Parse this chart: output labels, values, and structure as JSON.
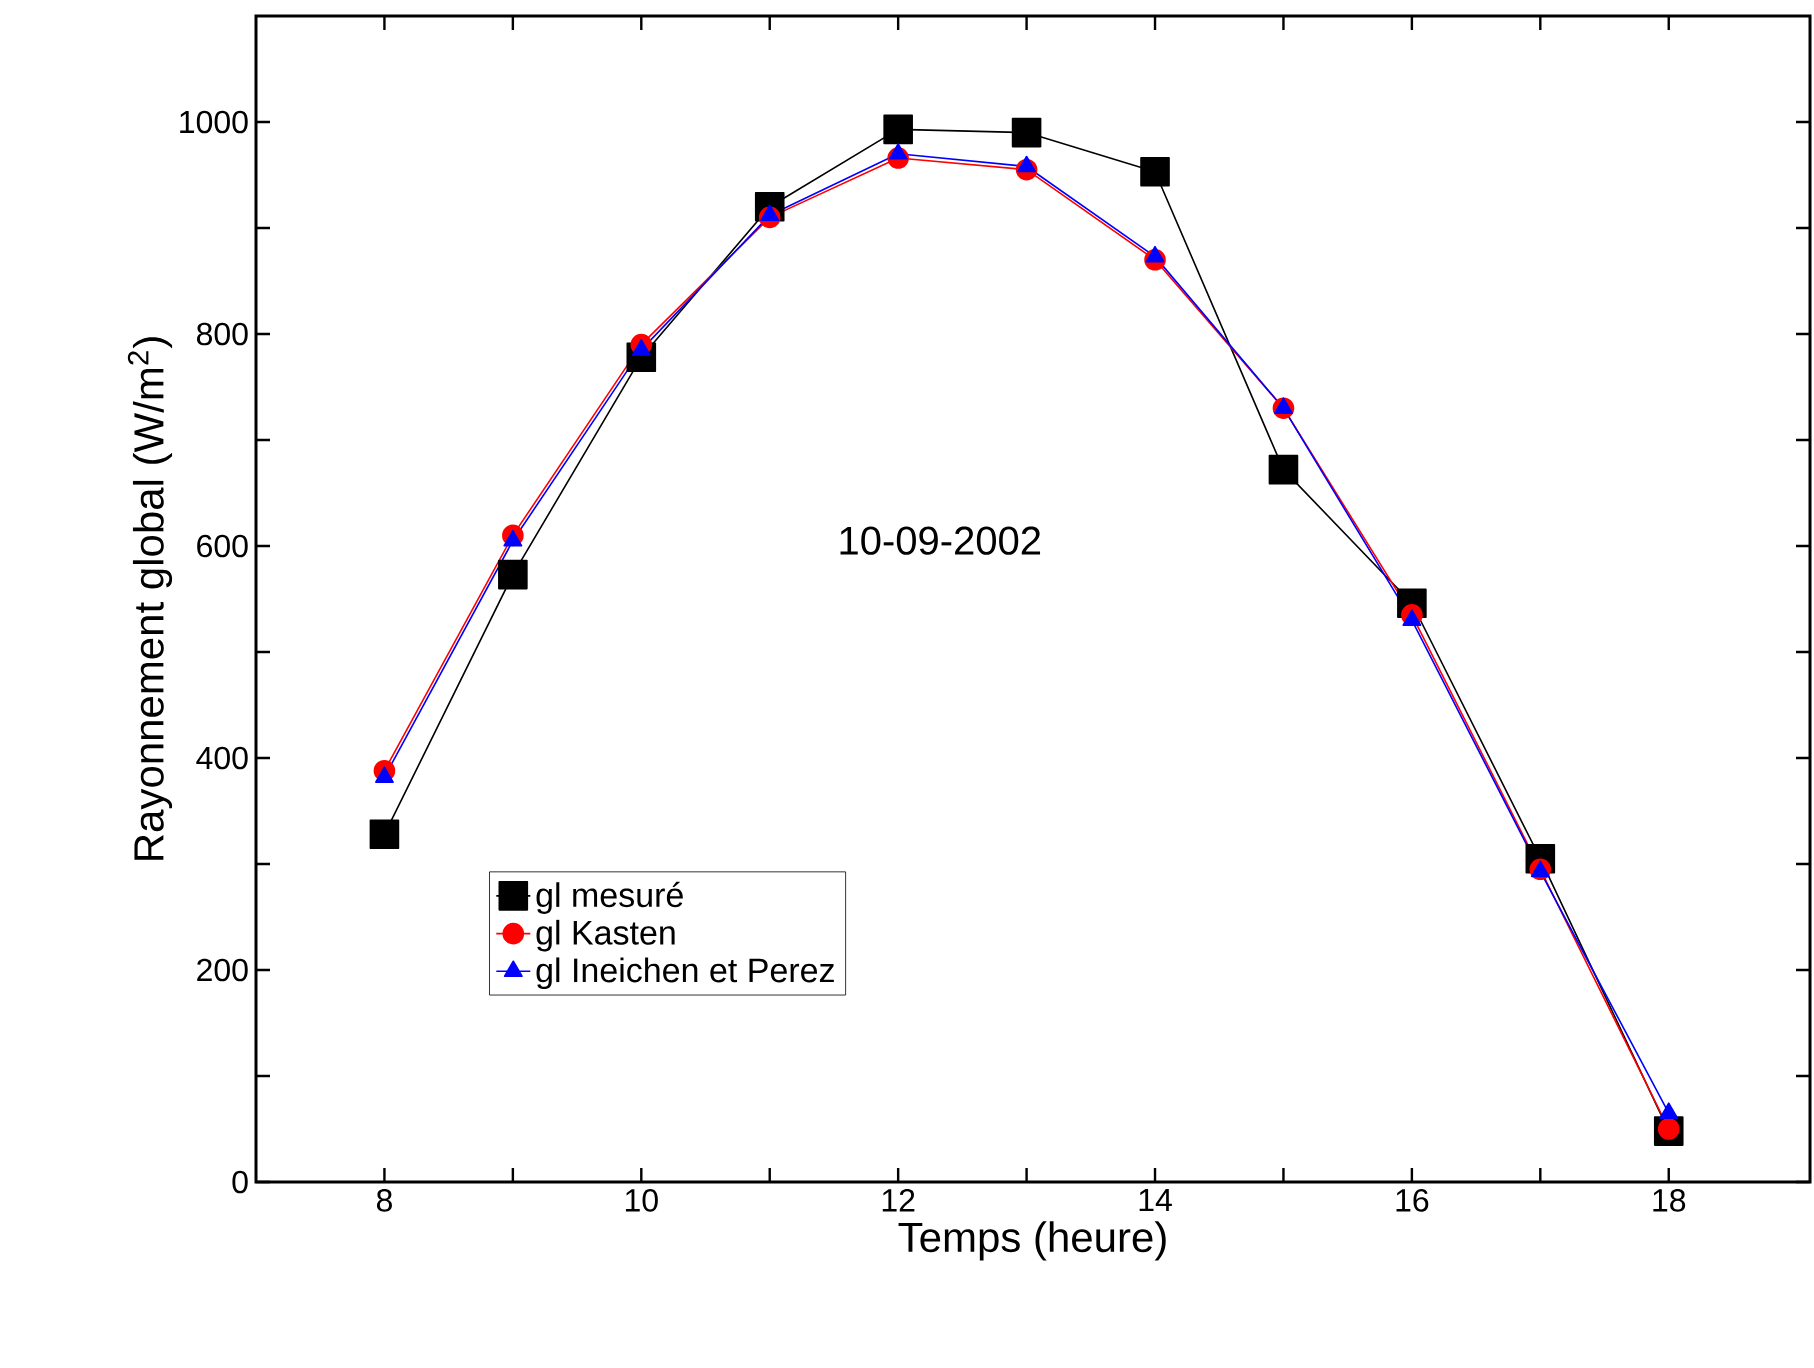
{
  "chart_data": {
    "type": "line",
    "xlabel": "Temps (heure)",
    "ylabel": "Rayonnement global (W/m$^{2}$)",
    "annotations": [
      "10-09-2002"
    ],
    "x": [
      8,
      9,
      10,
      11,
      12,
      13,
      14,
      15,
      16,
      17,
      18
    ],
    "series": [
      {
        "name": "gl mesuré",
        "color": "#000000",
        "marker": "square",
        "values": [
          328,
          573,
          778,
          920,
          993,
          990,
          953,
          672,
          546,
          305,
          48
        ]
      },
      {
        "name": "gl Kasten",
        "color": "#ff0000",
        "marker": "circle",
        "values": [
          388,
          610,
          790,
          910,
          966,
          955,
          870,
          730,
          535,
          295,
          50
        ]
      },
      {
        "name": "gl Ineichen et Perez",
        "color": "#0000ff",
        "marker": "triangle",
        "values": [
          382,
          605,
          785,
          912,
          970,
          958,
          873,
          730,
          530,
          293,
          65
        ]
      }
    ],
    "xlim": [
      7,
      19.1
    ],
    "ylim": [
      0,
      1100
    ],
    "xticks": [
      8,
      {
        "value": 9,
        "label": null
      },
      10,
      {
        "value": 11,
        "label": null
      },
      12,
      {
        "value": 13,
        "label": null
      },
      14,
      {
        "value": 15,
        "label": null
      },
      16,
      {
        "value": 17,
        "label": null
      },
      18
    ],
    "yticks": [
      0,
      {
        "value": 100,
        "label": null
      },
      200,
      {
        "value": 300,
        "label": null
      },
      400,
      {
        "value": 500,
        "label": null
      },
      600,
      {
        "value": 700,
        "label": null
      },
      800,
      {
        "value": 900,
        "label": null
      },
      1000
    ],
    "grid": false,
    "legend": "bottom",
    "line_style": "solid"
  }
}
